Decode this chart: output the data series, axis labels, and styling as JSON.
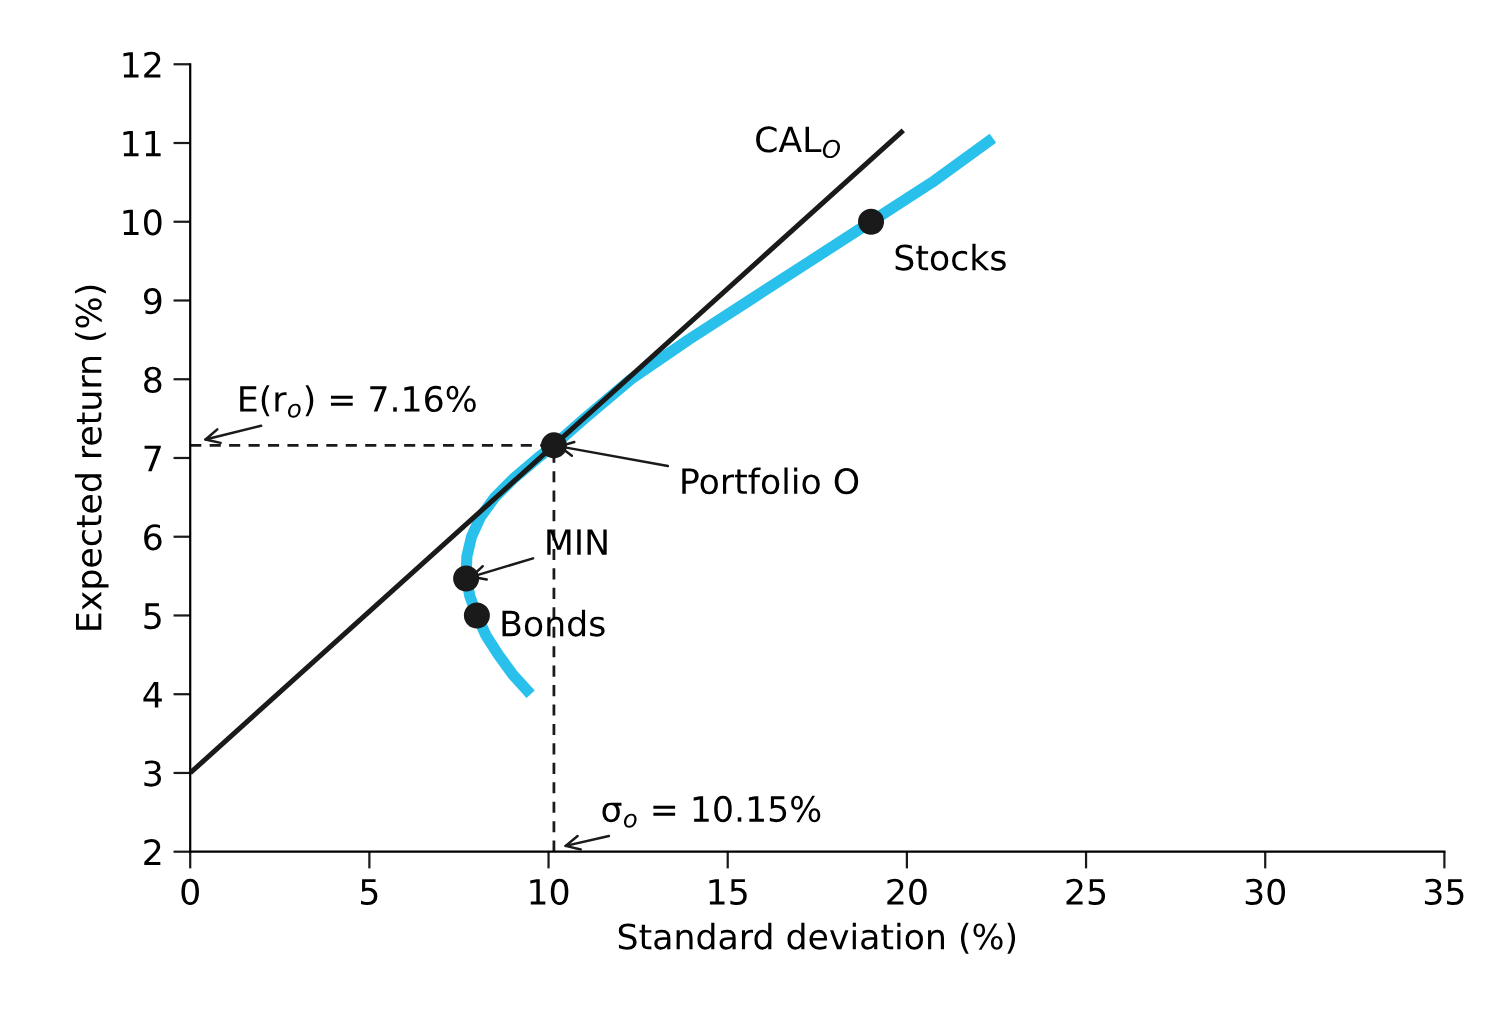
{
  "chart_data": {
    "type": "line",
    "xlabel": "Standard deviation (%)",
    "ylabel": "Expected return (%)",
    "xlim": [
      0,
      35
    ],
    "xticks": [
      0,
      5,
      10,
      15,
      20,
      25,
      30,
      35
    ],
    "ylim": [
      2,
      12
    ],
    "yticks": [
      2,
      3,
      4,
      5,
      6,
      7,
      8,
      9,
      10,
      11,
      12
    ],
    "grid": false,
    "series": [
      {
        "color": "#29c0ec",
        "x": [
          9.5,
          9.0,
          8.6,
          8.25,
          8.0,
          7.8,
          7.7,
          7.72,
          7.85,
          8.1,
          8.5,
          9.05,
          9.7,
          10.15,
          11.0,
          12.3,
          13.9,
          15.6,
          17.3,
          19.0,
          20.7,
          22.4
        ],
        "values": [
          4.0,
          4.25,
          4.5,
          4.75,
          5.0,
          5.25,
          5.5,
          5.75,
          6.0,
          6.25,
          6.5,
          6.75,
          7.0,
          7.16,
          7.5,
          8.0,
          8.5,
          9.0,
          9.5,
          10.0,
          10.5,
          11.06
        ]
      },
      {
        "type": "line",
        "color": "#1a1a1a",
        "x": [
          0,
          19.9
        ],
        "values": [
          3.0,
          11.16
        ]
      },
      {
        "type": "scatter",
        "color": "#1a1a1a",
        "marker": "circle",
        "x": [
          19,
          10.15,
          7.7,
          8.0
        ],
        "values": [
          10.0,
          7.16,
          5.47,
          5.0
        ]
      }
    ],
    "ref_lines": [
      {
        "axis": "y",
        "value": 7.16,
        "label": "E(r$_{o}$) = 7.16%",
        "color": "#1a1a1a",
        "line_style": "dashed"
      },
      {
        "axis": "x",
        "value": 10.15,
        "label": "σ$_{o}$ = 10.15%",
        "color": "#1a1a1a",
        "line_style": "dashed"
      }
    ],
    "annotations": [
      {
        "text": "CAL$_{O}$",
        "x": 18.5,
        "y": 10.58
      },
      {
        "text": "Stocks",
        "x": 19,
        "y": 10.0
      },
      {
        "text": "Portfolio O",
        "x": 10.15,
        "y": 7.16
      },
      {
        "text": "MIN",
        "x": 7.7,
        "y": 5.47
      },
      {
        "text": "Bonds",
        "x": 8.0,
        "y": 5.0
      }
    ]
  }
}
